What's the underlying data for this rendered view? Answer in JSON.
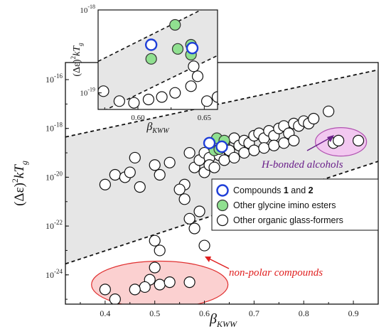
{
  "chart_data": [
    {
      "type": "scatter",
      "xlabel_symbol": "β",
      "xlabel_sub": "KWW",
      "ylabel_parts": [
        "(Δε)",
        "2",
        "kT",
        "g"
      ],
      "xlim": [
        0.32,
        0.95
      ],
      "ylim_log10": [
        -25.2,
        -15.3
      ],
      "log_y": true,
      "xticks": [
        0.4,
        0.5,
        0.6,
        0.7,
        0.8,
        0.9
      ],
      "xtick_labels": [
        "0.4",
        "0.5",
        "0.6",
        "0.7",
        "0.8",
        "0.9"
      ],
      "yticks_log10": [
        -24,
        -22,
        -20,
        -18,
        -16
      ],
      "ytick_mantissa": "10",
      "ytick_exponents": [
        "-24",
        "-22",
        "-20",
        "-18",
        "-16"
      ],
      "bounds": {
        "upper": [
          [
            0.32,
            -18.35
          ],
          [
            0.95,
            -15.6
          ]
        ],
        "lower": [
          [
            0.32,
            -23.55
          ],
          [
            0.95,
            -19.35
          ]
        ]
      },
      "series": [
        {
          "name": "Compounds 1 and 2",
          "name_parts": [
            "Compounds ",
            "1",
            " and ",
            "2"
          ],
          "edge": "#1f3fd8",
          "fill": "#ffffff",
          "points": [
            [
              0.61,
              -18.6
            ],
            [
              0.635,
              -18.75
            ]
          ]
        },
        {
          "name": "Other glycine imino esters",
          "edge": "#333333",
          "fill": "#90e090",
          "points": [
            [
              0.625,
              -18.4
            ],
            [
              0.64,
              -18.5
            ],
            [
              0.62,
              -18.9
            ],
            [
              0.63,
              -18.85
            ]
          ]
        },
        {
          "name": "Other organic glass-formers",
          "edge": "#111111",
          "fill": "#ffffff",
          "points": [
            [
              0.4,
              -20.3
            ],
            [
              0.42,
              -19.9
            ],
            [
              0.44,
              -20.0
            ],
            [
              0.45,
              -19.8
            ],
            [
              0.46,
              -19.2
            ],
            [
              0.47,
              -20.4
            ],
            [
              0.5,
              -19.5
            ],
            [
              0.51,
              -19.9
            ],
            [
              0.53,
              -19.4
            ],
            [
              0.56,
              -20.3
            ],
            [
              0.57,
              -19.0
            ],
            [
              0.58,
              -19.6
            ],
            [
              0.59,
              -19.3
            ],
            [
              0.6,
              -19.0
            ],
            [
              0.61,
              -19.2
            ],
            [
              0.62,
              -18.8
            ],
            [
              0.63,
              -19.1
            ],
            [
              0.64,
              -18.6
            ],
            [
              0.65,
              -18.9
            ],
            [
              0.66,
              -18.4
            ],
            [
              0.67,
              -18.7
            ],
            [
              0.68,
              -18.5
            ],
            [
              0.69,
              -18.6
            ],
            [
              0.7,
              -18.3
            ],
            [
              0.71,
              -18.2
            ],
            [
              0.72,
              -18.4
            ],
            [
              0.73,
              -18.1
            ],
            [
              0.74,
              -18.3
            ],
            [
              0.75,
              -18.0
            ],
            [
              0.76,
              -17.9
            ],
            [
              0.77,
              -18.2
            ],
            [
              0.78,
              -17.8
            ],
            [
              0.79,
              -17.9
            ],
            [
              0.8,
              -17.7
            ],
            [
              0.81,
              -17.8
            ],
            [
              0.82,
              -17.6
            ],
            [
              0.85,
              -17.3
            ],
            [
              0.86,
              -18.6
            ],
            [
              0.87,
              -18.5
            ],
            [
              0.91,
              -18.5
            ],
            [
              0.6,
              -19.8
            ],
            [
              0.61,
              -19.5
            ],
            [
              0.62,
              -19.6
            ],
            [
              0.64,
              -19.3
            ],
            [
              0.66,
              -19.2
            ],
            [
              0.68,
              -19.0
            ],
            [
              0.7,
              -18.9
            ],
            [
              0.72,
              -18.8
            ],
            [
              0.74,
              -18.7
            ],
            [
              0.76,
              -18.6
            ],
            [
              0.78,
              -18.5
            ],
            [
              0.57,
              -21.7
            ],
            [
              0.58,
              -22.1
            ],
            [
              0.59,
              -21.4
            ],
            [
              0.6,
              -22.8
            ],
            [
              0.5,
              -22.6
            ],
            [
              0.51,
              -23.0
            ],
            [
              0.5,
              -23.7
            ],
            [
              0.49,
              -24.2
            ],
            [
              0.48,
              -24.5
            ],
            [
              0.46,
              -24.6
            ],
            [
              0.51,
              -24.4
            ],
            [
              0.53,
              -24.3
            ],
            [
              0.57,
              -24.3
            ],
            [
              0.4,
              -24.6
            ],
            [
              0.42,
              -25.0
            ],
            [
              0.56,
              -20.9
            ],
            [
              0.55,
              -20.5
            ]
          ]
        }
      ],
      "annotations": [
        {
          "text": "H-bonded alcohols",
          "color": "#6a1f8a"
        },
        {
          "text": "non-polar compounds",
          "color": "#e02020"
        }
      ],
      "colors": {
        "band": "#e6e6e6",
        "alcohol_ellipse_fill": "#f2c8f0",
        "alcohol_ellipse_edge": "#b050b0",
        "nonpolar_ellipse_fill": "#fbd0d0",
        "nonpolar_ellipse_edge": "#e03030",
        "alcohol_arrow": "#6a1f8a",
        "nonpolar_arrow": "#e02020"
      }
    },
    {
      "type": "scatter",
      "inset": true,
      "xlabel_symbol": "β",
      "xlabel_sub": "KWW",
      "ylabel_parts": [
        "(Δε)",
        "2",
        "kT",
        "g"
      ],
      "xlim": [
        0.57,
        0.66
      ],
      "ylim_log10": [
        -19.2,
        -18.0
      ],
      "log_y": true,
      "xticks": [
        0.6,
        0.65
      ],
      "xtick_labels": [
        "0.60",
        "0.65"
      ],
      "yticks_log10": [
        -19,
        -18
      ],
      "ytick_mantissa": "10",
      "ytick_exponents": [
        "-19",
        "-18"
      ],
      "bounds": {
        "upper": [
          [
            0.57,
            -18.62
          ],
          [
            0.66,
            -17.9
          ]
        ],
        "lower": [
          [
            0.57,
            -19.25
          ],
          [
            0.66,
            -18.55
          ]
        ]
      },
      "series": [
        {
          "name": "Compounds 1 and 2",
          "edge": "#1f3fd8",
          "fill": "#ffffff",
          "points": [
            [
              0.61,
              -18.42
            ],
            [
              0.641,
              -18.46
            ]
          ]
        },
        {
          "name": "Other glycine imino esters",
          "edge": "#333333",
          "fill": "#90e090",
          "points": [
            [
              0.628,
              -18.18
            ],
            [
              0.63,
              -18.47
            ],
            [
              0.64,
              -18.42
            ],
            [
              0.61,
              -18.59
            ],
            [
              0.64,
              -18.54
            ]
          ]
        },
        {
          "name": "Other organic glass-formers",
          "edge": "#111111",
          "fill": "#ffffff",
          "points": [
            [
              0.574,
              -18.98
            ],
            [
              0.586,
              -19.1
            ],
            [
              0.597,
              -19.12
            ],
            [
              0.608,
              -19.08
            ],
            [
              0.618,
              -19.05
            ],
            [
              0.628,
              -19.0
            ],
            [
              0.64,
              -18.92
            ],
            [
              0.645,
              -18.8
            ],
            [
              0.642,
              -18.68
            ],
            [
              0.652,
              -19.1
            ],
            [
              0.66,
              -19.05
            ]
          ]
        }
      ]
    }
  ],
  "legend": {
    "items": [
      {
        "text_parts": [
          "Compounds ",
          "1",
          " and ",
          "2"
        ],
        "edge": "#1f3fd8",
        "fill": "#ffffff"
      },
      {
        "text_parts": [
          "Other glycine imino esters"
        ],
        "edge": "#333333",
        "fill": "#90e090"
      },
      {
        "text_parts": [
          "Other organic glass-formers"
        ],
        "edge": "#111111",
        "fill": "#ffffff"
      }
    ]
  }
}
